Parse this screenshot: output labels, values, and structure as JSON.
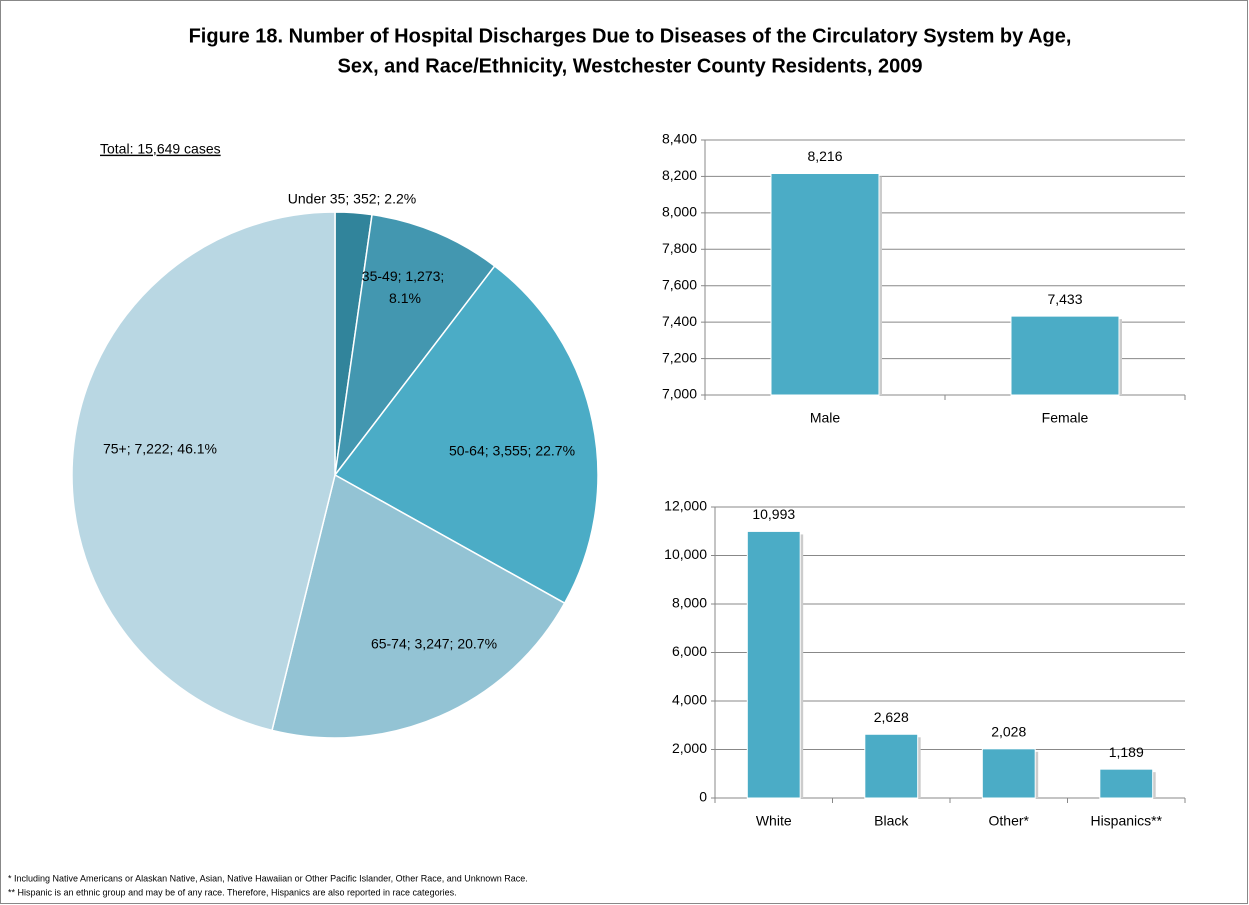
{
  "title": [
    "Figure 18. Number of Hospital Discharges Due to Diseases of the Circulatory System by Age,",
    "Sex, and Race/Ethnicity, Westchester County Residents, 2009"
  ],
  "footnotes": [
    "* Including Native Americans or Alaskan Native, Asian, Native Hawaiian or Other Pacific Islander, Other Race, and Unknown Race.",
    "** Hispanic is an ethnic group and may be of any race.  Therefore, Hispanics are also reported in race categories."
  ],
  "chart_data": [
    {
      "type": "pie",
      "annotation": "Total: 15,649 cases",
      "values": [
        352,
        1273,
        3555,
        3247,
        7222
      ],
      "value_labels": [
        "Under 35; 352; 2.2%",
        "35-49; 1,273; 8.1%",
        "50-64; 3,555; 22.7%",
        "65-74; 3,247; 20.7%",
        "75+; 7,222; 46.1%"
      ],
      "colors": [
        "#31849b",
        "#4397b0",
        "#4bacc6",
        "#93c3d4",
        "#b9d7e3"
      ]
    },
    {
      "type": "bar",
      "categories": [
        "Male",
        "Female"
      ],
      "values": [
        8216,
        7433
      ],
      "value_labels": [
        "8,216",
        "7,433"
      ],
      "color": "#4bacc6",
      "ylim": [
        7000,
        8400
      ],
      "yticks": [
        {
          "value": 7000,
          "label": "7,000"
        },
        {
          "value": 7200,
          "label": "7,200"
        },
        {
          "value": 7400,
          "label": "7,400"
        },
        {
          "value": 7600,
          "label": "7,600"
        },
        {
          "value": 7800,
          "label": "7,800"
        },
        {
          "value": 8000,
          "label": "8,000"
        },
        {
          "value": 8200,
          "label": "8,200"
        },
        {
          "value": 8400,
          "label": "8,400"
        }
      ],
      "grid": true
    },
    {
      "type": "bar",
      "categories": [
        "White",
        "Black",
        "Other*",
        "Hispanics**"
      ],
      "values": [
        10993,
        2628,
        2028,
        1189
      ],
      "value_labels": [
        "10,993",
        "2,628",
        "2,028",
        "1,189"
      ],
      "color": "#4bacc6",
      "ylim": [
        0,
        12000
      ],
      "yticks": [
        0,
        {
          "value": 2000,
          "label": "2,000"
        },
        {
          "value": 4000,
          "label": "4,000"
        },
        {
          "value": 6000,
          "label": "6,000"
        },
        {
          "value": 8000,
          "label": "8,000"
        },
        {
          "value": 10000,
          "label": "10,000"
        },
        {
          "value": 12000,
          "label": "12,000"
        }
      ],
      "grid": true
    }
  ]
}
